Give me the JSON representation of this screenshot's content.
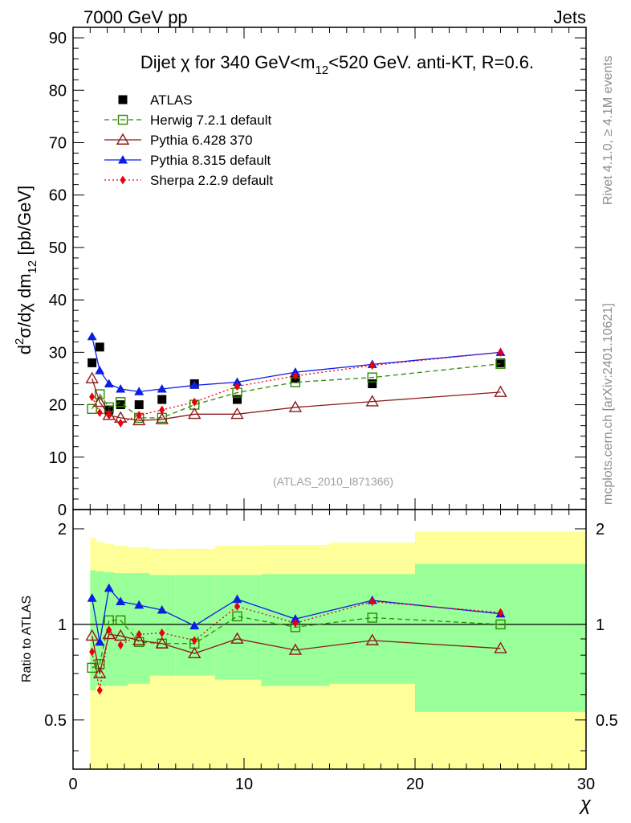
{
  "header": {
    "left": "7000 GeV pp",
    "right": "Jets"
  },
  "side_labels": {
    "rivet": "Rivet 4.1.0, ≥ 4.1M events",
    "mcplots": "mcplots.cern.ch [arXiv:2401.10621]"
  },
  "chart_data": {
    "type": "scatter",
    "title": "Dijet χ for 340 GeV<m12<520 GeV.  anti-KT, R=0.6.",
    "title_parts": {
      "pre": "Dijet ",
      "chi": "χ",
      "mid": " for 340 GeV<m",
      "sub": "12",
      "post": "<520 GeV.  anti-KT, R=0.6."
    },
    "ylabel": "d²σ/dχ dm12 [pb/GeV]",
    "ylabel_parts": {
      "a": "d",
      "sup": "2",
      "b": "σ/dχ dm",
      "sub": "12",
      "c": " [pb/GeV]"
    },
    "ratio_ylabel": "Ratio to ATLAS",
    "xlabel": "χ",
    "watermark": "(ATLAS_2010_I871366)",
    "xlim": [
      0,
      30
    ],
    "ylim": [
      0,
      92
    ],
    "ratio_ylim": [
      0.35,
      2.3
    ],
    "xticks": [
      "0",
      "10",
      "20",
      "30"
    ],
    "yticks": [
      "0",
      "10",
      "20",
      "30",
      "40",
      "50",
      "60",
      "70",
      "80",
      "90"
    ],
    "ratio_yticks": [
      "0.5",
      "1",
      "2"
    ],
    "x": [
      1.11,
      1.56,
      2.1,
      2.78,
      3.86,
      5.2,
      7.1,
      9.6,
      13.0,
      17.5,
      25.0
    ],
    "bins": [
      1.0,
      1.35,
      1.8,
      2.4,
      3.2,
      4.5,
      6.0,
      8.3,
      11.0,
      15.0,
      20.0,
      30.0
    ],
    "ratio_band_green": [
      [
        0.62,
        1.48
      ],
      [
        0.64,
        1.47
      ],
      [
        0.64,
        1.46
      ],
      [
        0.64,
        1.45
      ],
      [
        0.65,
        1.45
      ],
      [
        0.69,
        1.43
      ],
      [
        0.69,
        1.43
      ],
      [
        0.67,
        1.43
      ],
      [
        0.64,
        1.44
      ],
      [
        0.65,
        1.44
      ],
      [
        0.53,
        1.55
      ]
    ],
    "ratio_band_yellow": [
      [
        0.35,
        1.87
      ],
      [
        0.35,
        1.82
      ],
      [
        0.35,
        1.79
      ],
      [
        0.35,
        1.77
      ],
      [
        0.35,
        1.75
      ],
      [
        0.35,
        1.73
      ],
      [
        0.35,
        1.73
      ],
      [
        0.35,
        1.77
      ],
      [
        0.35,
        1.78
      ],
      [
        0.35,
        1.81
      ],
      [
        0.35,
        1.96
      ]
    ],
    "series": [
      {
        "name": "ATLAS",
        "color": "#000000",
        "marker": "square",
        "line": "none",
        "values": [
          28.0,
          31.0,
          19.0,
          20.0,
          20.0,
          21.0,
          24.0,
          21.0,
          25.0,
          24.0,
          28.0
        ],
        "ratio": [
          1.0,
          1.0,
          1.0,
          1.0,
          1.0,
          1.0,
          1.0,
          1.0,
          1.0,
          1.0,
          1.0
        ]
      },
      {
        "name": "Herwig 7.2.1 default",
        "color": "#2e8b00",
        "marker": "open-square",
        "line": "dashed",
        "values": [
          19.2,
          22.0,
          19.5,
          20.5,
          17.5,
          17.5,
          20.0,
          22.3,
          24.3,
          25.2,
          27.8
        ],
        "ratio": [
          0.73,
          0.75,
          1.03,
          1.03,
          0.88,
          0.87,
          0.87,
          1.06,
          0.98,
          1.05,
          1.0
        ]
      },
      {
        "name": "Pythia 6.428 370",
        "color": "#8b1a1a",
        "marker": "open-triangle",
        "line": "solid",
        "values": [
          25.0,
          20.5,
          18.0,
          17.5,
          17.0,
          17.2,
          18.2,
          18.2,
          19.5,
          20.6,
          22.4
        ],
        "ratio": [
          0.92,
          0.7,
          0.93,
          0.92,
          0.89,
          0.87,
          0.81,
          0.9,
          0.83,
          0.89,
          0.84
        ]
      },
      {
        "name": "Pythia 8.315 default",
        "color": "#0a1ee6",
        "marker": "triangle",
        "line": "solid",
        "values": [
          33.0,
          26.5,
          24.0,
          23.0,
          22.5,
          23.0,
          23.7,
          24.3,
          26.2,
          27.7,
          30.0
        ],
        "ratio": [
          1.21,
          0.88,
          1.3,
          1.18,
          1.15,
          1.11,
          0.99,
          1.2,
          1.04,
          1.19,
          1.08
        ]
      },
      {
        "name": "Sherpa 2.2.9 default",
        "color": "#e8000b",
        "marker": "diamond",
        "line": "dotted",
        "values": [
          21.5,
          18.5,
          18.0,
          16.5,
          18.0,
          19.0,
          20.5,
          23.5,
          25.5,
          27.5,
          30.0
        ],
        "ratio": [
          0.82,
          0.62,
          0.96,
          0.86,
          0.93,
          0.94,
          0.89,
          1.14,
          1.01,
          1.18,
          1.09
        ]
      }
    ]
  }
}
